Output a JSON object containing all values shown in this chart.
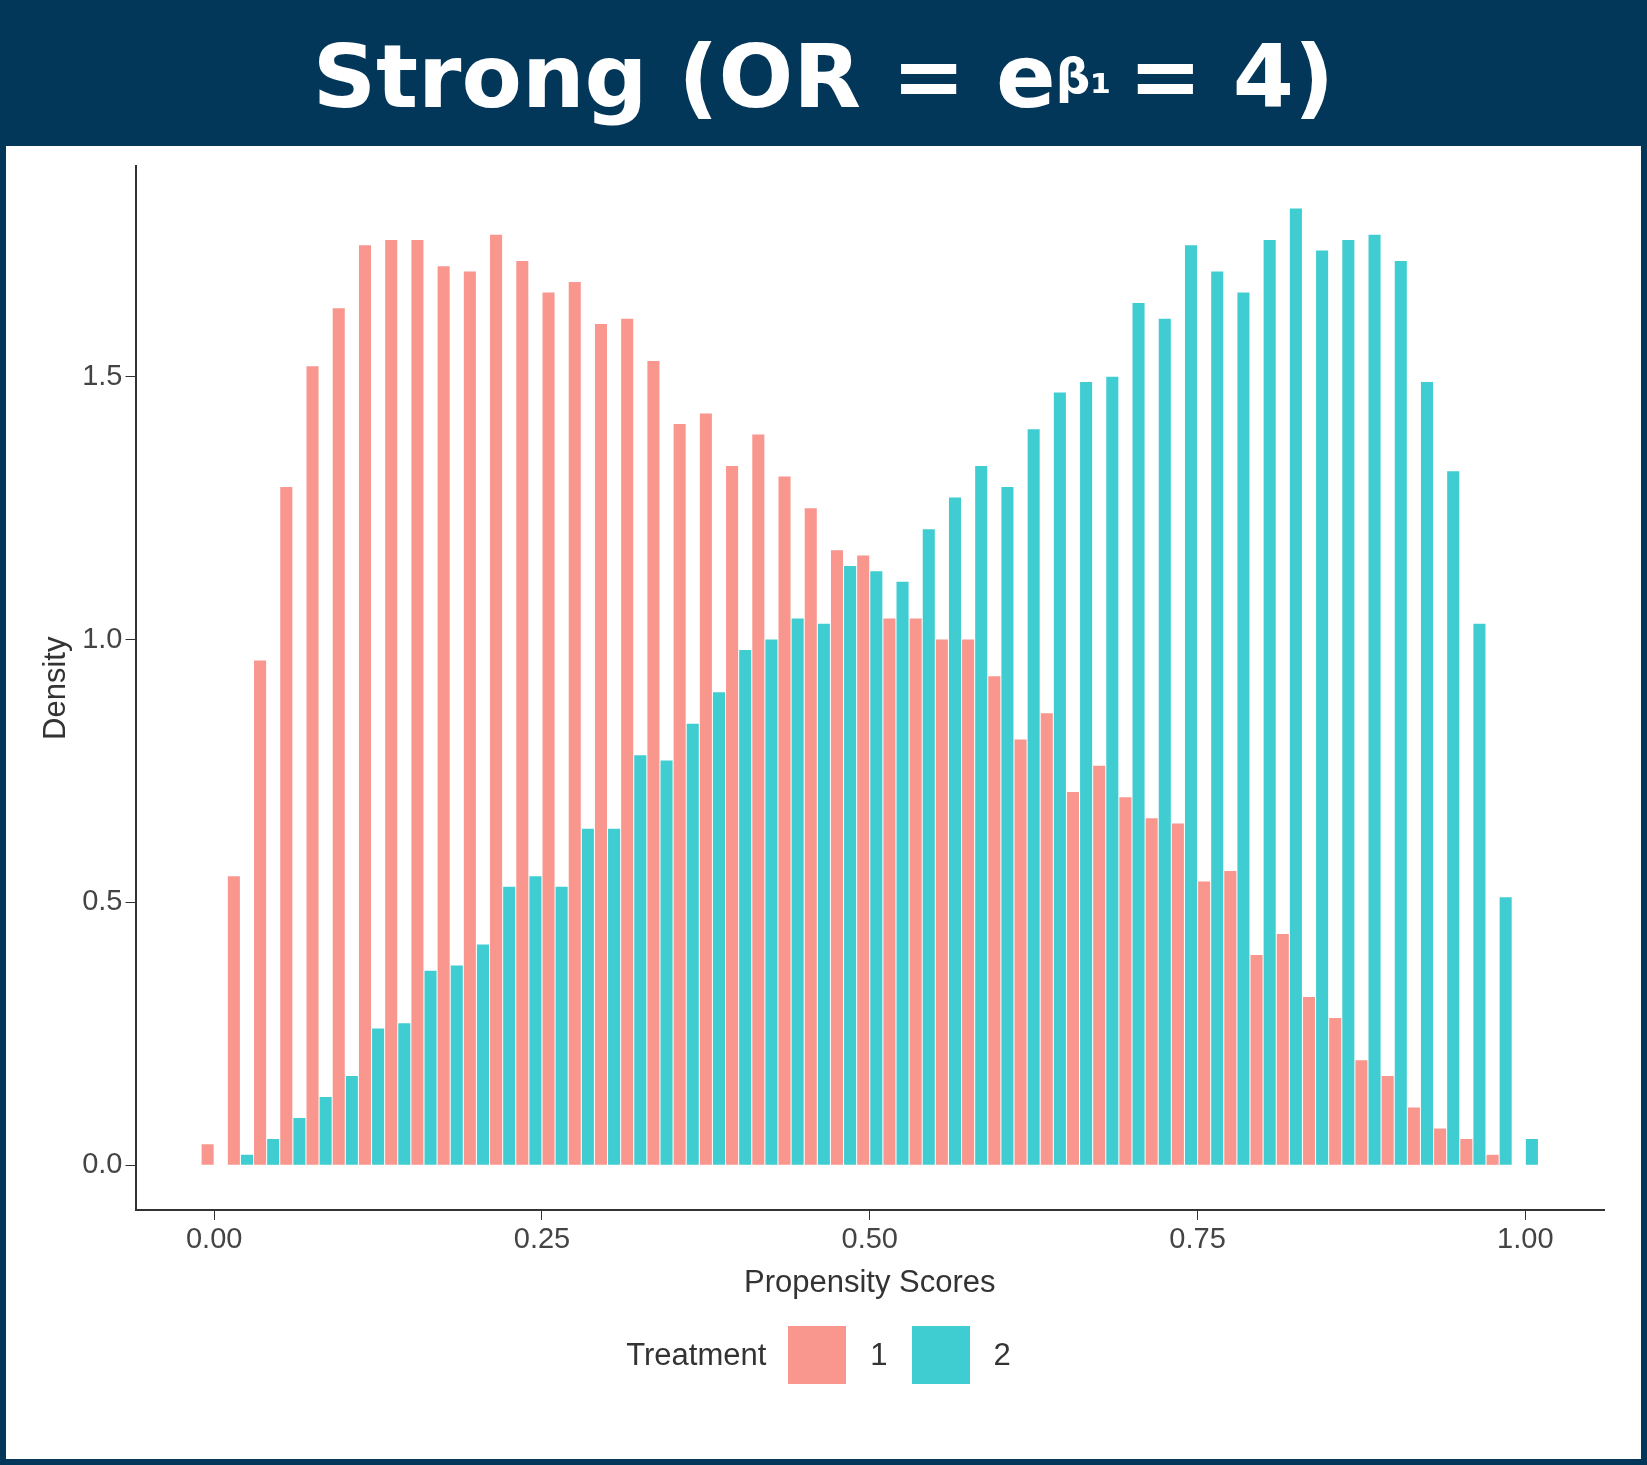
{
  "chart_data": {
    "type": "histogram",
    "title": "Strong (OR = e$^{β₁}$ = 4)",
    "xlabel": "Propensity Scores",
    "ylabel": "Density",
    "legend_title": "Treatment",
    "legend": "bottom",
    "grid": false,
    "bins": [
      -0.01,
      0.01,
      0.03,
      0.05,
      0.07,
      0.09,
      0.11,
      0.13,
      0.15,
      0.17,
      0.19,
      0.21,
      0.23,
      0.25,
      0.27,
      0.29,
      0.31,
      0.33,
      0.35,
      0.37,
      0.39,
      0.41,
      0.43,
      0.45,
      0.47,
      0.49,
      0.51,
      0.53,
      0.55,
      0.57,
      0.59,
      0.61,
      0.63,
      0.65,
      0.67,
      0.69,
      0.71,
      0.73,
      0.75,
      0.77,
      0.79,
      0.81,
      0.83,
      0.85,
      0.87,
      0.89,
      0.91,
      0.93,
      0.95,
      0.97,
      0.99,
      1.01
    ],
    "series": [
      {
        "name": "1",
        "color": "#f9968e",
        "values": [
          0.04,
          0.55,
          0.96,
          1.29,
          1.52,
          1.63,
          1.75,
          1.76,
          1.76,
          1.71,
          1.7,
          1.77,
          1.72,
          1.66,
          1.68,
          1.6,
          1.61,
          1.53,
          1.41,
          1.43,
          1.33,
          1.39,
          1.31,
          1.25,
          1.17,
          1.16,
          1.04,
          1.04,
          1.0,
          1.0,
          0.93,
          0.81,
          0.86,
          0.71,
          0.76,
          0.7,
          0.66,
          0.65,
          0.54,
          0.56,
          0.4,
          0.44,
          0.32,
          0.28,
          0.2,
          0.17,
          0.11,
          0.07,
          0.05,
          0.02,
          0
        ]
      },
      {
        "name": "2",
        "color": "#3fcdd1",
        "values": [
          0,
          0.02,
          0.05,
          0.09,
          0.13,
          0.17,
          0.26,
          0.27,
          0.37,
          0.38,
          0.42,
          0.53,
          0.55,
          0.53,
          0.64,
          0.64,
          0.78,
          0.77,
          0.84,
          0.9,
          0.98,
          1.0,
          1.04,
          1.03,
          1.14,
          1.13,
          1.11,
          1.21,
          1.27,
          1.33,
          1.29,
          1.4,
          1.47,
          1.49,
          1.5,
          1.64,
          1.61,
          1.75,
          1.7,
          1.66,
          1.76,
          1.82,
          1.74,
          1.76,
          1.77,
          1.72,
          1.49,
          1.32,
          1.03,
          0.51,
          0.05
        ]
      }
    ],
    "xlim": [
      -0.06,
      1.06
    ],
    "ylim": [
      -0.085,
      1.9
    ],
    "xticks": [
      {
        "value": 0,
        "label": "0.00"
      },
      {
        "value": 0.25,
        "label": "0.25"
      },
      {
        "value": 0.5,
        "label": "0.50"
      },
      {
        "value": 0.75,
        "label": "0.75"
      },
      {
        "value": 1,
        "label": "1.00"
      }
    ],
    "yticks": [
      {
        "value": 0,
        "label": "0.0"
      },
      {
        "value": 0.5,
        "label": "0.5"
      },
      {
        "value": 1,
        "label": "1.0"
      },
      {
        "value": 1.5,
        "label": "1.5"
      }
    ]
  }
}
